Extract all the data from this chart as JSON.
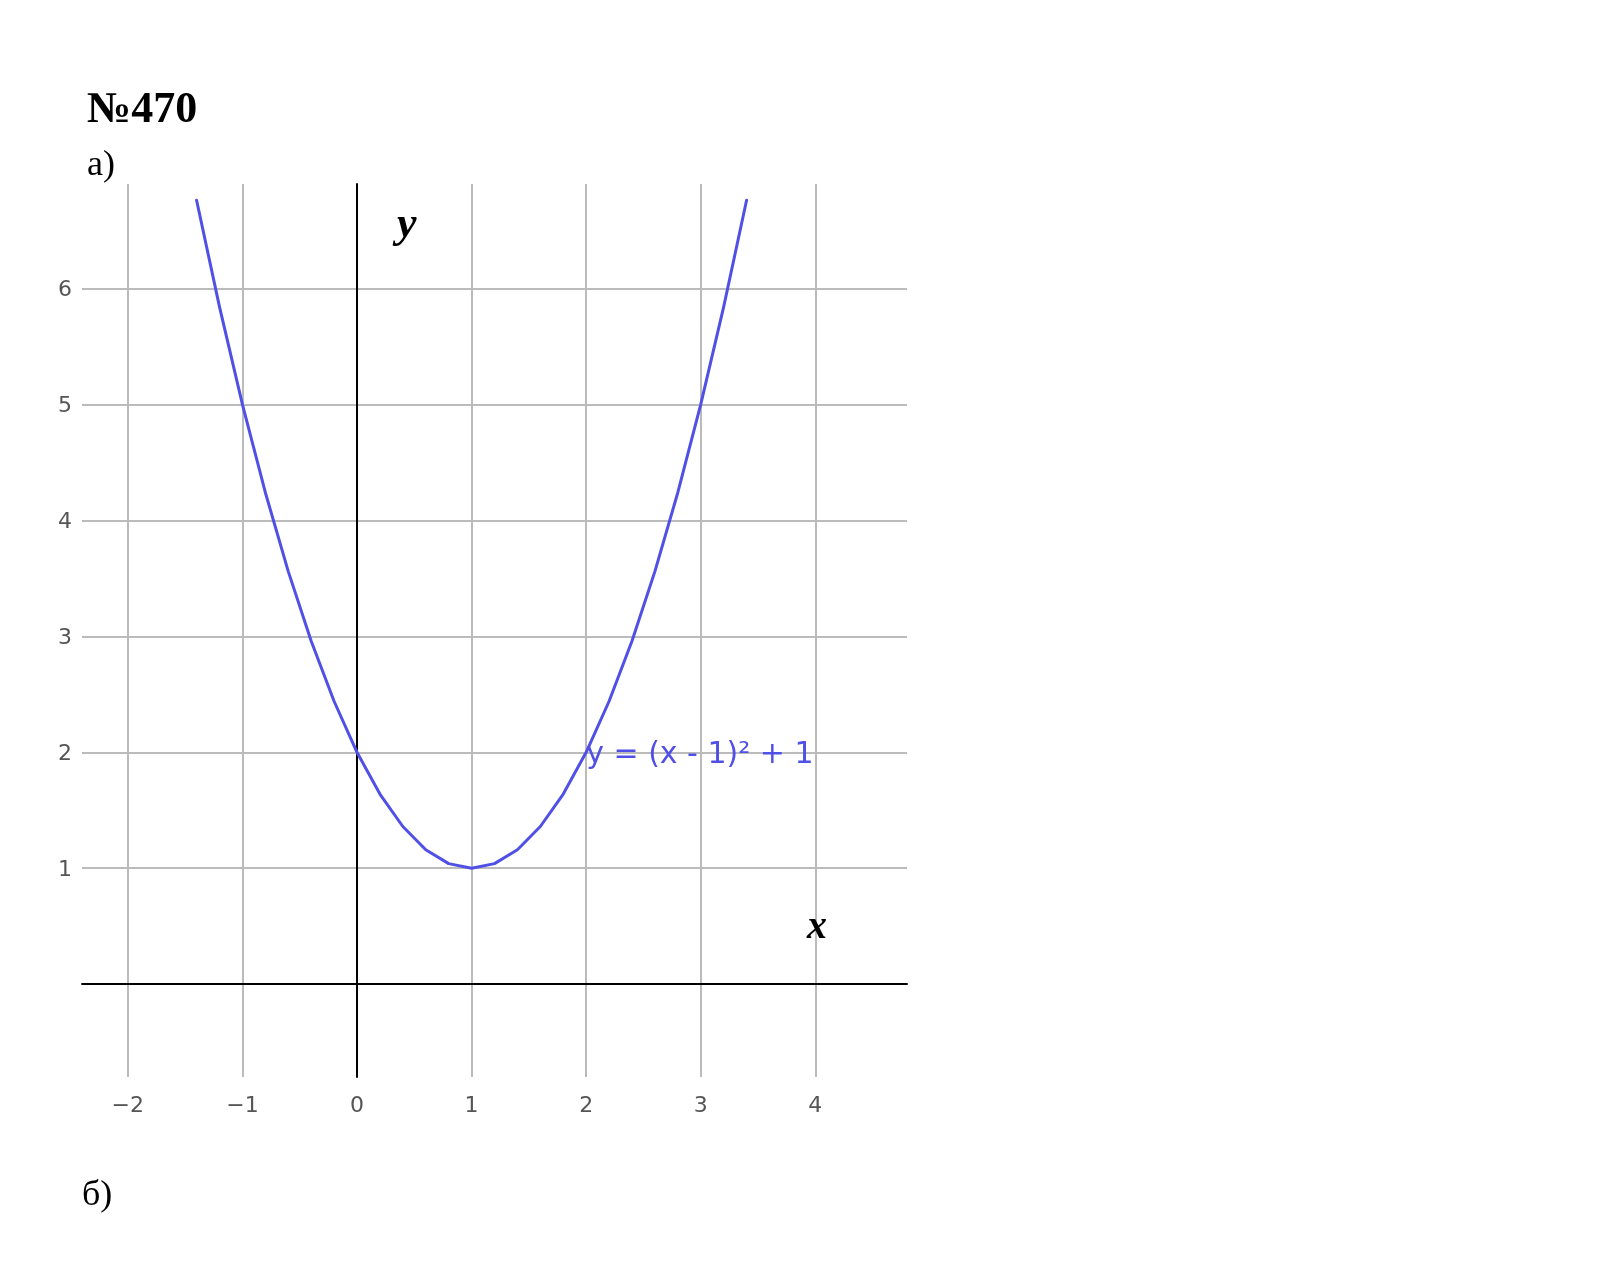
{
  "chart_data": {
    "type": "line",
    "title": "№470",
    "subtitle": "а)",
    "xlabel": "x",
    "ylabel": "y",
    "x": [
      -1.4,
      -1.2,
      -1,
      -0.8,
      -0.6,
      -0.4,
      -0.2,
      0,
      0.2,
      0.4,
      0.6,
      0.8,
      1,
      1.2,
      1.4,
      1.6,
      1.8,
      2,
      2.2,
      2.4,
      2.6,
      2.8,
      3,
      3.2,
      3.4
    ],
    "series": [
      {
        "color": "#5050e6",
        "values": [
          6.76,
          5.84,
          5,
          4.24,
          3.56,
          2.96,
          2.44,
          2,
          1.64,
          1.36,
          1.16,
          1.04,
          1,
          1.04,
          1.16,
          1.36,
          1.64,
          2,
          2.44,
          2.96,
          3.56,
          4.24,
          5,
          5.84,
          6.76
        ]
      }
    ],
    "xlim": [
      -2.4,
      4.8
    ],
    "ylim": [
      -0.8,
      6.9
    ],
    "xticks": [
      -2,
      -1,
      0,
      1,
      2,
      3,
      4
    ],
    "yticks": [
      1,
      2,
      3,
      4,
      5,
      6
    ],
    "grid": true,
    "marker": "none",
    "line_style": "solid",
    "annotations": [
      {
        "text": "y = (x - 1)² + 1",
        "x": 2,
        "y": 2
      },
      "б)"
    ]
  }
}
